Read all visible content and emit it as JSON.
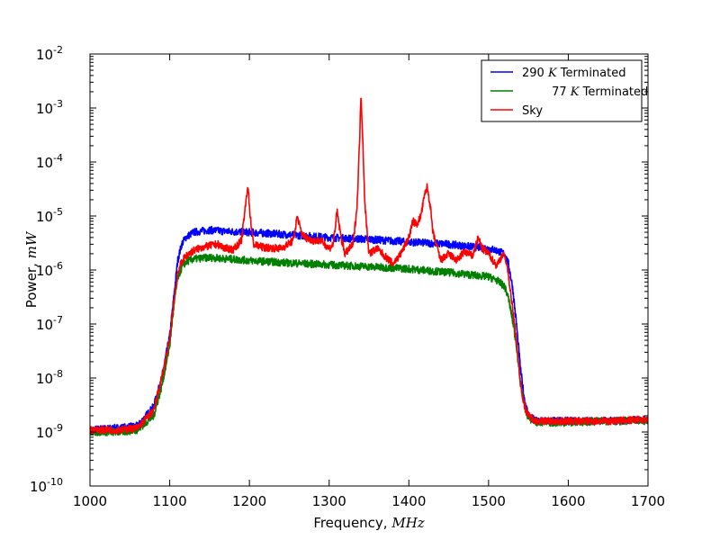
{
  "chart_data": {
    "type": "line",
    "title": "",
    "xlabel_text": "Frequency, ",
    "xlabel_unit": "MHz",
    "ylabel_text": "Power, ",
    "ylabel_unit": "mW",
    "x_range": [
      1000,
      1700
    ],
    "y_range": [
      1e-10,
      0.01
    ],
    "y_scale": "log",
    "grid": false,
    "legend_position": "top-right",
    "x_ticks": [
      "1000",
      "1100",
      "1200",
      "1300",
      "1400",
      "1500",
      "1600",
      "1700"
    ],
    "y_ticks": [
      {
        "base": "10",
        "exp": "-2"
      },
      {
        "base": "10",
        "exp": "-3"
      },
      {
        "base": "10",
        "exp": "-4"
      },
      {
        "base": "10",
        "exp": "-5"
      },
      {
        "base": "10",
        "exp": "-6"
      },
      {
        "base": "10",
        "exp": "-7"
      },
      {
        "base": "10",
        "exp": "-8"
      },
      {
        "base": "10",
        "exp": "-9"
      },
      {
        "base": "10",
        "exp": "-10"
      }
    ],
    "series": [
      {
        "name_prefix": "290 ",
        "name_italic": "K",
        "name_suffix": " Terminated",
        "color": "#0000ff",
        "x": [
          1000,
          1040,
          1060,
          1080,
          1090,
          1100,
          1105,
          1110,
          1115,
          1120,
          1130,
          1150,
          1170,
          1200,
          1250,
          1300,
          1350,
          1400,
          1450,
          1500,
          1510,
          1520,
          1525,
          1530,
          1535,
          1540,
          1545,
          1550,
          1560,
          1580,
          1600,
          1650,
          1700
        ],
        "y": [
          1.1e-09,
          1.2e-09,
          1.3e-09,
          3e-09,
          1e-08,
          6e-08,
          3e-07,
          1.5e-06,
          3e-06,
          4e-06,
          5e-06,
          5.5e-06,
          5.2e-06,
          5e-06,
          4.5e-06,
          4e-06,
          3.7e-06,
          3.3e-06,
          3e-06,
          2.5e-06,
          2.3e-06,
          2e-06,
          1.3e-06,
          5e-07,
          1e-07,
          1.5e-08,
          4e-09,
          2e-09,
          1.6e-09,
          1.6e-09,
          1.6e-09,
          1.6e-09,
          1.7e-09
        ]
      },
      {
        "name_prefix": " 77 ",
        "name_italic": "K",
        "name_suffix": " Terminated",
        "color": "#008000",
        "x": [
          1000,
          1040,
          1060,
          1080,
          1090,
          1100,
          1105,
          1110,
          1115,
          1120,
          1130,
          1150,
          1200,
          1250,
          1300,
          1350,
          1400,
          1450,
          1500,
          1510,
          1520,
          1525,
          1530,
          1535,
          1540,
          1545,
          1550,
          1560,
          1580,
          1600,
          1650,
          1700
        ],
        "y": [
          1e-09,
          1e-09,
          1.1e-09,
          2e-09,
          7e-09,
          4e-08,
          2e-07,
          7e-07,
          1.1e-06,
          1.4e-06,
          1.6e-06,
          1.7e-06,
          1.5e-06,
          1.35e-06,
          1.25e-06,
          1.15e-06,
          1.05e-06,
          9e-07,
          7.5e-07,
          6.5e-07,
          5e-07,
          3e-07,
          1.2e-07,
          4e-08,
          8e-09,
          3e-09,
          1.8e-09,
          1.5e-09,
          1.5e-09,
          1.5e-09,
          1.6e-09,
          1.6e-09
        ]
      },
      {
        "name_prefix": "Sky",
        "name_italic": "",
        "name_suffix": "",
        "color": "#ff0000",
        "x": [
          1000,
          1040,
          1060,
          1080,
          1090,
          1100,
          1105,
          1110,
          1115,
          1120,
          1130,
          1140,
          1150,
          1160,
          1170,
          1180,
          1190,
          1195,
          1198,
          1201,
          1205,
          1210,
          1220,
          1240,
          1255,
          1260,
          1265,
          1270,
          1280,
          1290,
          1300,
          1305,
          1310,
          1315,
          1320,
          1330,
          1335,
          1338,
          1340,
          1342,
          1345,
          1350,
          1360,
          1370,
          1380,
          1390,
          1400,
          1405,
          1410,
          1415,
          1420,
          1423,
          1427,
          1430,
          1440,
          1450,
          1460,
          1470,
          1480,
          1487,
          1492,
          1500,
          1510,
          1518,
          1522,
          1525,
          1530,
          1535,
          1540,
          1545,
          1550,
          1560,
          1580,
          1600,
          1650,
          1700
        ],
        "y": [
          1.1e-09,
          1.1e-09,
          1.2e-09,
          2.5e-09,
          1e-08,
          5e-08,
          2.5e-07,
          9e-07,
          1.4e-06,
          1.8e-06,
          2.3e-06,
          2.6e-06,
          2.8e-06,
          3e-06,
          2.5e-06,
          2.4e-06,
          3.5e-06,
          1.5e-05,
          3.8e-05,
          1e-05,
          3e-06,
          2.8e-06,
          2.6e-06,
          2.5e-06,
          3.5e-06,
          1e-05,
          5e-06,
          4e-06,
          3.5e-06,
          3.5e-06,
          2.5e-06,
          3e-06,
          1.2e-05,
          4e-06,
          2e-06,
          3e-06,
          1.5e-05,
          0.0002,
          0.002,
          0.0003,
          1.5e-05,
          2e-06,
          2.5e-06,
          1.8e-06,
          1.3e-06,
          2e-06,
          4e-06,
          8e-06,
          7e-06,
          1e-05,
          2.5e-05,
          3.5e-05,
          1.5e-05,
          5e-06,
          1.5e-06,
          2e-06,
          1.5e-06,
          2.2e-06,
          1.8e-06,
          4e-06,
          2.5e-06,
          2e-06,
          1.2e-06,
          2e-06,
          1.5e-06,
          8e-07,
          2e-07,
          5e-08,
          8e-09,
          3e-09,
          2e-09,
          1.6e-09,
          1.6e-09,
          1.6e-09,
          1.6e-09,
          1.7e-09
        ]
      }
    ]
  }
}
